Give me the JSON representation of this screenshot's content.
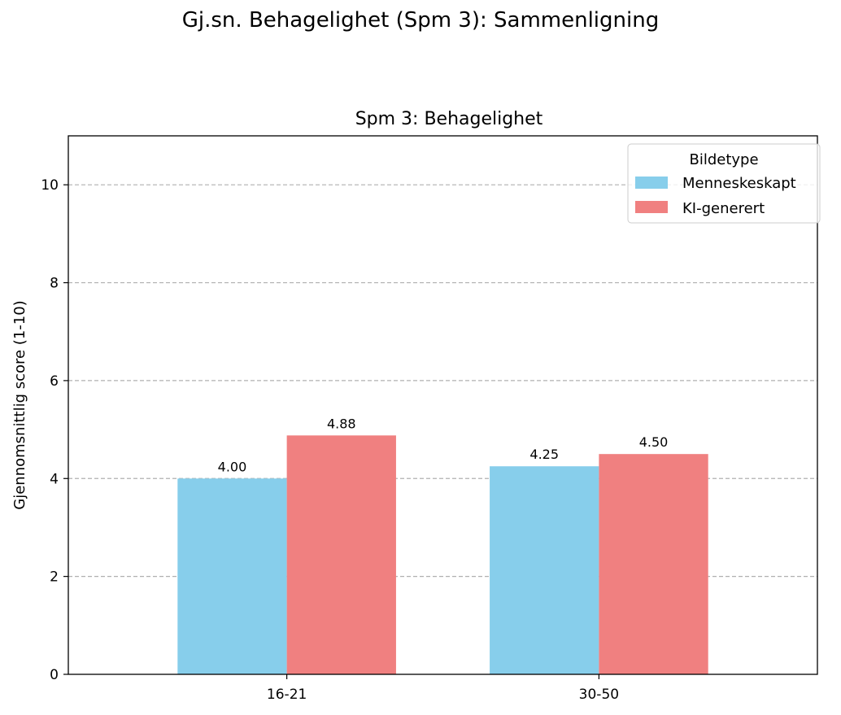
{
  "figure": {
    "suptitle": "Gj.sn. Behagelighet (Spm 3): Sammenligning"
  },
  "chart_data": {
    "type": "bar",
    "title": "Spm 3: Behagelighet",
    "xlabel": "",
    "ylabel": "Gjennomsnittlig score (1-10)",
    "categories": [
      "16-21",
      "30-50"
    ],
    "series": [
      {
        "name": "Menneskeskapt",
        "values": [
          4.0,
          4.25
        ],
        "labels": [
          "4.00",
          "4.25"
        ],
        "color": "#87CEEB"
      },
      {
        "name": "KI-generert",
        "values": [
          4.88,
          4.5
        ],
        "labels": [
          "4.88",
          "4.50"
        ],
        "color": "#F08080"
      }
    ],
    "ylim": [
      0,
      11
    ],
    "yticks": [
      0,
      2,
      4,
      6,
      8,
      10
    ],
    "ytick_labels": [
      "0",
      "2",
      "4",
      "6",
      "8",
      "10"
    ],
    "grid": {
      "axis": "y",
      "style": "dashed"
    },
    "legend": {
      "title": "Bildetype",
      "placement": "top-right"
    }
  }
}
